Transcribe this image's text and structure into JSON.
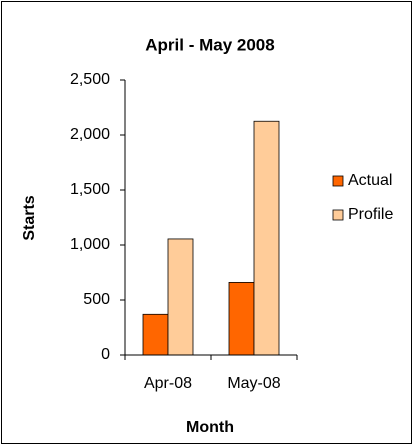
{
  "chart_data": {
    "type": "bar",
    "title": "April - May 2008",
    "x_label": "Month",
    "y_label": "Starts",
    "categories": [
      "Apr-08",
      "May-08"
    ],
    "series": [
      {
        "name": "Actual",
        "color": "#ff6600",
        "values": [
          370,
          660
        ]
      },
      {
        "name": "Profile",
        "color": "#ffcc99",
        "values": [
          1055,
          2125
        ]
      }
    ],
    "ylim": [
      0,
      2500
    ],
    "yticks": [
      0,
      500,
      {
        "value": 1000,
        "label": "1,000"
      },
      {
        "value": 1500,
        "label": "1,500"
      },
      {
        "value": 2000,
        "label": "2,000"
      },
      {
        "value": 2500,
        "label": "2,500"
      }
    ],
    "grid": false,
    "legend": "right"
  }
}
